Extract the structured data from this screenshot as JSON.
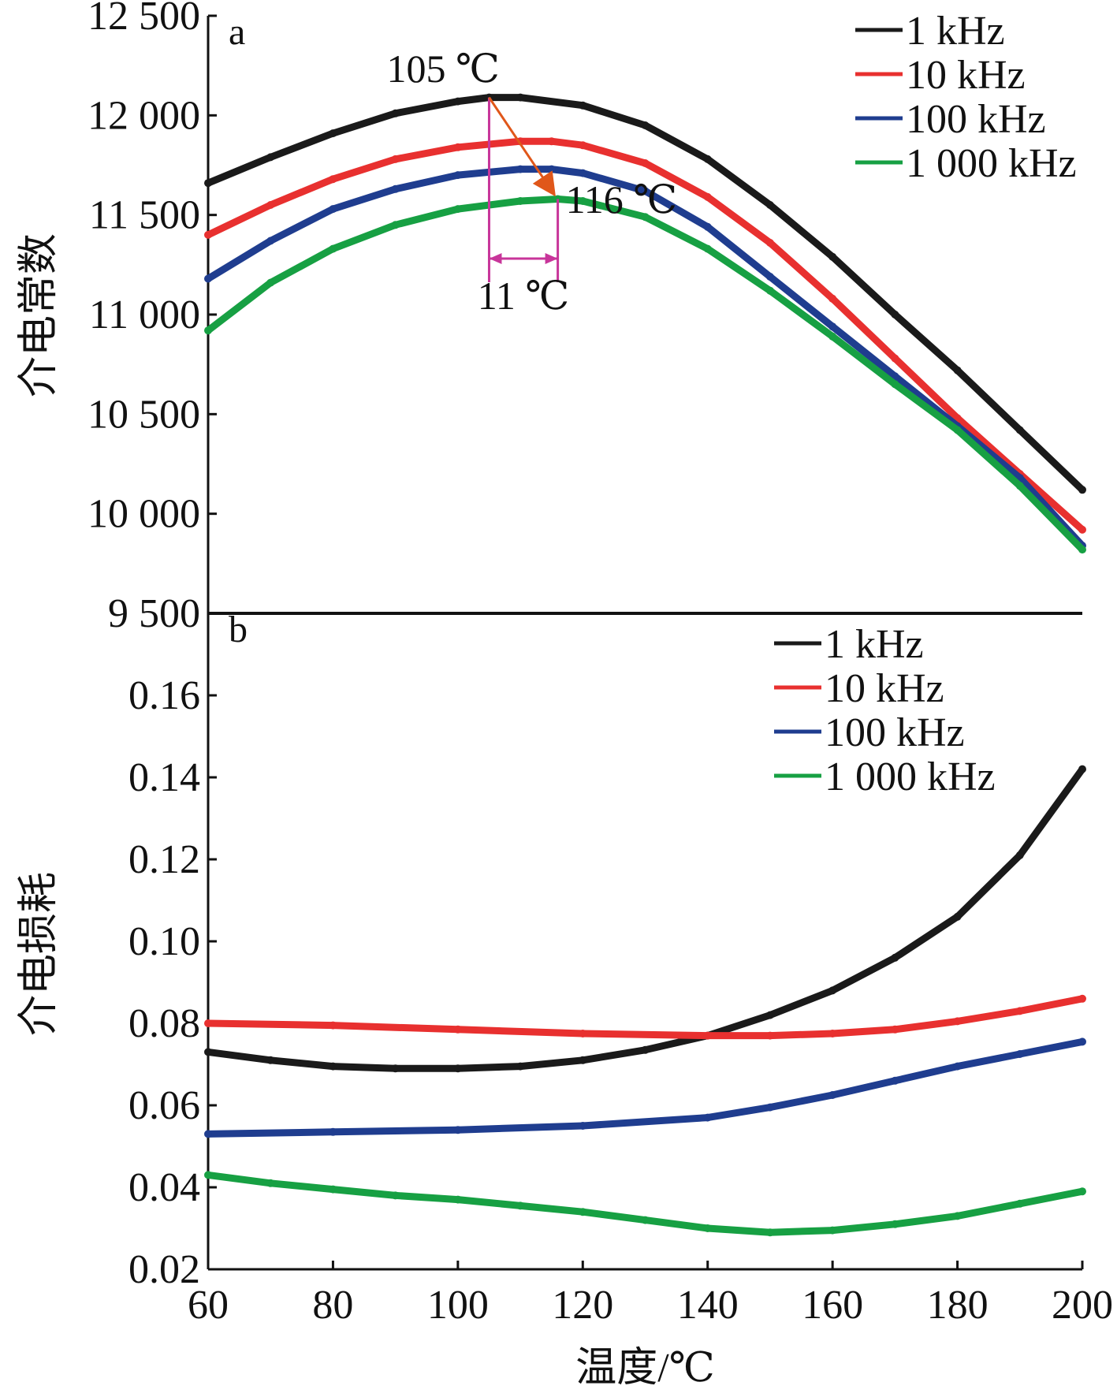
{
  "chart_data": [
    {
      "type": "line",
      "panel_label": "a",
      "ylabel": "介电常数",
      "xlim": [
        60,
        200
      ],
      "ylim": [
        9500,
        12500
      ],
      "yticks": [
        "12 500",
        "12 000",
        "11 500",
        "11 000",
        "10 500",
        "10 000",
        "9 500"
      ],
      "ytick_values": [
        12500,
        12000,
        11500,
        11000,
        10500,
        10000,
        9500
      ],
      "legend_position": "top-right",
      "series": [
        {
          "name": "1 kHz",
          "color": "#1a1a1a",
          "x": [
            60,
            70,
            80,
            90,
            100,
            105,
            110,
            120,
            130,
            140,
            150,
            160,
            170,
            180,
            190,
            200
          ],
          "y": [
            11660,
            11790,
            11910,
            12010,
            12070,
            12090,
            12090,
            12050,
            11950,
            11780,
            11550,
            11290,
            11000,
            10720,
            10420,
            10120
          ]
        },
        {
          "name": "10 kHz",
          "color": "#e8302f",
          "x": [
            60,
            70,
            80,
            90,
            100,
            110,
            115,
            120,
            130,
            140,
            150,
            160,
            170,
            180,
            190,
            200
          ],
          "y": [
            11400,
            11550,
            11680,
            11780,
            11840,
            11870,
            11870,
            11850,
            11760,
            11590,
            11360,
            11080,
            10780,
            10480,
            10200,
            9920
          ]
        },
        {
          "name": "100 kHz",
          "color": "#1f3d8f",
          "x": [
            60,
            70,
            80,
            90,
            100,
            110,
            115,
            120,
            130,
            140,
            150,
            160,
            170,
            180,
            190,
            200
          ],
          "y": [
            11180,
            11370,
            11530,
            11630,
            11700,
            11730,
            11730,
            11710,
            11620,
            11440,
            11190,
            10940,
            10690,
            10440,
            10180,
            9840
          ]
        },
        {
          "name": "1 000 kHz",
          "color": "#17a043",
          "x": [
            60,
            70,
            80,
            90,
            100,
            110,
            116,
            120,
            130,
            140,
            150,
            160,
            170,
            180,
            190,
            200
          ],
          "y": [
            10920,
            11160,
            11330,
            11450,
            11530,
            11570,
            11580,
            11570,
            11490,
            11330,
            11120,
            10890,
            10650,
            10420,
            10140,
            9820
          ]
        }
      ],
      "annotations": [
        {
          "text": "105 ℃",
          "at": [
            105,
            12090
          ]
        },
        {
          "text": "116 ℃",
          "at": [
            116,
            11580
          ]
        },
        {
          "text": "11 ℃",
          "between": [
            105,
            116
          ]
        }
      ],
      "annotation_colors": {
        "shift_arrow": "#e0571a",
        "bracket": "#c8359a"
      }
    },
    {
      "type": "line",
      "panel_label": "b",
      "ylabel": "介电损耗",
      "xlabel": "温度/℃",
      "xlim": [
        60,
        200
      ],
      "ylim": [
        0.02,
        0.18
      ],
      "xticks": [
        "60",
        "80",
        "100",
        "120",
        "140",
        "160",
        "180",
        "200"
      ],
      "xtick_values": [
        60,
        80,
        100,
        120,
        140,
        160,
        180,
        200
      ],
      "yticks": [
        "0.16",
        "0.14",
        "0.12",
        "0.10",
        "0.08",
        "0.06",
        "0.04",
        "0.02"
      ],
      "ytick_values": [
        0.16,
        0.14,
        0.12,
        0.1,
        0.08,
        0.06,
        0.04,
        0.02
      ],
      "legend_position": "top-right",
      "series": [
        {
          "name": "1 kHz",
          "color": "#1a1a1a",
          "x": [
            60,
            70,
            80,
            90,
            100,
            110,
            120,
            130,
            140,
            150,
            160,
            170,
            180,
            190,
            200
          ],
          "y": [
            0.073,
            0.071,
            0.0695,
            0.069,
            0.069,
            0.0695,
            0.071,
            0.0735,
            0.077,
            0.082,
            0.088,
            0.096,
            0.106,
            0.121,
            0.142
          ]
        },
        {
          "name": "10 kHz",
          "color": "#e8302f",
          "x": [
            60,
            80,
            100,
            120,
            140,
            150,
            160,
            170,
            180,
            190,
            200
          ],
          "y": [
            0.08,
            0.0795,
            0.0785,
            0.0775,
            0.077,
            0.077,
            0.0775,
            0.0785,
            0.0805,
            0.083,
            0.086
          ]
        },
        {
          "name": "100 kHz",
          "color": "#1f3d8f",
          "x": [
            60,
            80,
            100,
            120,
            140,
            150,
            160,
            170,
            180,
            190,
            200
          ],
          "y": [
            0.053,
            0.0535,
            0.054,
            0.055,
            0.057,
            0.0595,
            0.0625,
            0.066,
            0.0695,
            0.0725,
            0.0755
          ]
        },
        {
          "name": "1 000 kHz",
          "color": "#17a043",
          "x": [
            60,
            70,
            80,
            90,
            100,
            110,
            120,
            130,
            140,
            150,
            160,
            170,
            180,
            190,
            200
          ],
          "y": [
            0.043,
            0.041,
            0.0395,
            0.038,
            0.037,
            0.0355,
            0.034,
            0.032,
            0.03,
            0.029,
            0.0295,
            0.031,
            0.033,
            0.036,
            0.039
          ]
        }
      ]
    }
  ]
}
